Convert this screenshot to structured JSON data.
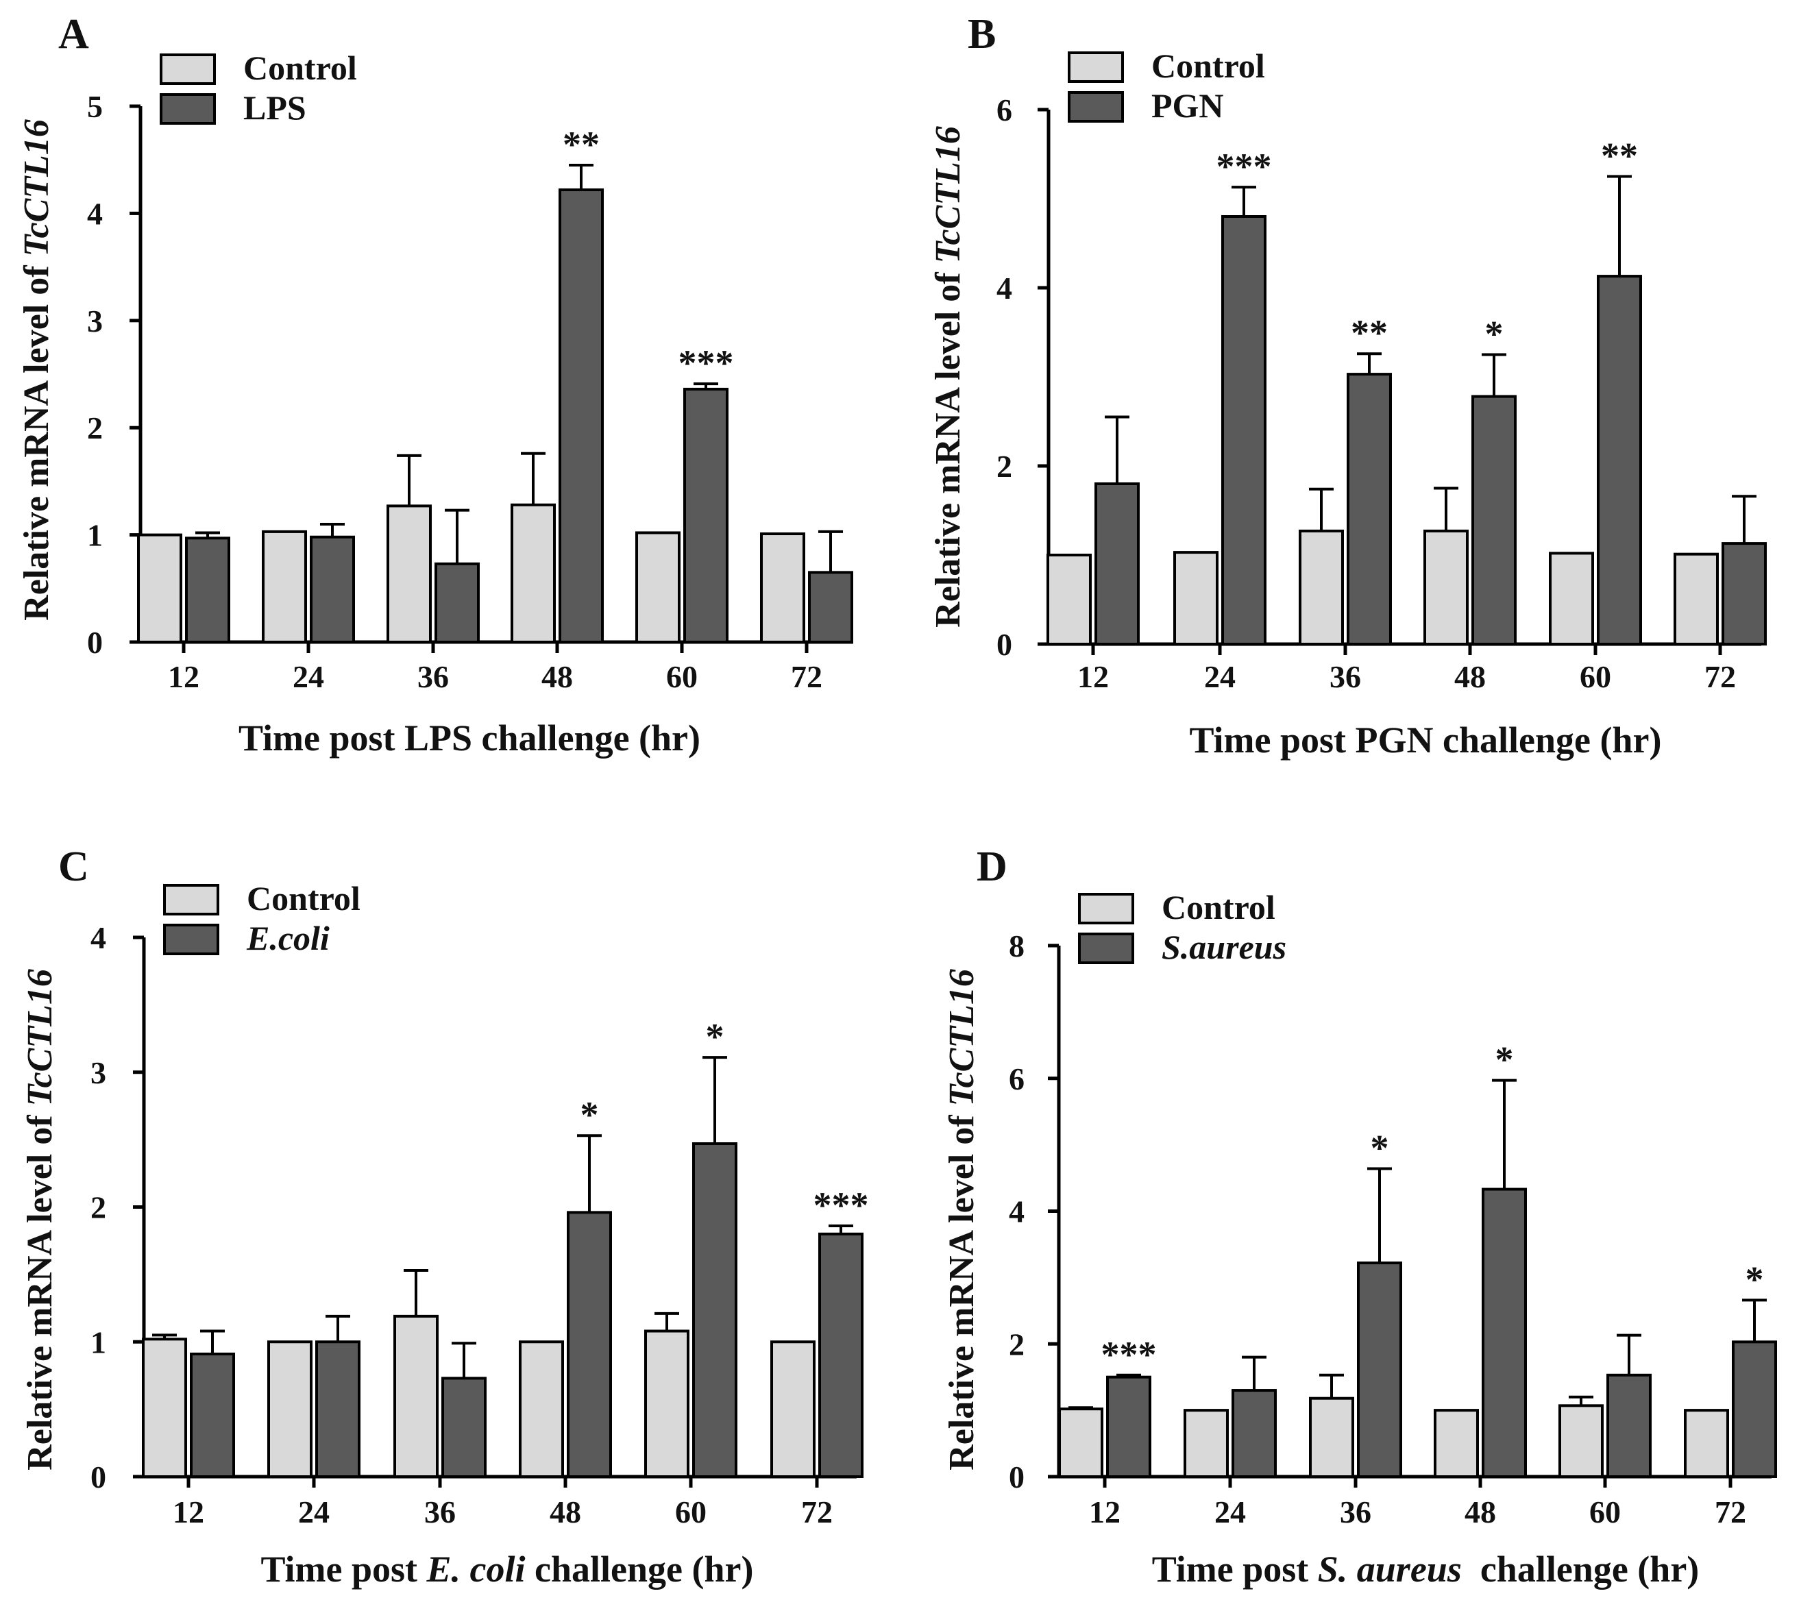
{
  "colors": {
    "control": "#d9d9d9",
    "treated": "#5a5a5a",
    "stroke": "#000000"
  },
  "chart_data": [
    {
      "type": "bar",
      "panel_label": "A",
      "ylabel_prefix": "Relative mRNA level of ",
      "ylabel_gene": "TcCTL16",
      "xlabel": [
        {
          "t": "Time post LPS challenge (hr)",
          "i": false
        }
      ],
      "categories": [
        "12",
        "24",
        "36",
        "48",
        "60",
        "72"
      ],
      "ylim": [
        0,
        5
      ],
      "yticks": [
        "0",
        "1",
        "2",
        "3",
        "4",
        "5"
      ],
      "legend": [
        {
          "label": "Control",
          "italic": false
        },
        {
          "label": "LPS",
          "italic": false
        }
      ],
      "series": [
        {
          "name": "Control",
          "values": [
            1.0,
            1.03,
            1.27,
            1.28,
            1.02,
            1.01
          ],
          "errors": [
            0.0,
            0.0,
            0.47,
            0.48,
            0.0,
            0.0
          ]
        },
        {
          "name": "LPS",
          "values": [
            0.97,
            0.98,
            0.73,
            4.22,
            2.36,
            0.65
          ],
          "errors": [
            0.05,
            0.12,
            0.5,
            0.23,
            0.05,
            0.38
          ]
        }
      ],
      "significance": [
        "",
        "",
        "",
        "**",
        "***",
        ""
      ]
    },
    {
      "type": "bar",
      "panel_label": "B",
      "ylabel_prefix": "Relative mRNA level of ",
      "ylabel_gene": "TcCTL16",
      "xlabel": [
        {
          "t": "Time post PGN challenge (hr)",
          "i": false
        }
      ],
      "categories": [
        "12",
        "24",
        "36",
        "48",
        "60",
        "72"
      ],
      "ylim": [
        0,
        6
      ],
      "yticks": [
        "0",
        "2",
        "4",
        "6"
      ],
      "legend": [
        {
          "label": "Control",
          "italic": false
        },
        {
          "label": "PGN",
          "italic": false
        }
      ],
      "series": [
        {
          "name": "Control",
          "values": [
            1.0,
            1.03,
            1.27,
            1.27,
            1.02,
            1.01
          ],
          "errors": [
            0.0,
            0.0,
            0.47,
            0.48,
            0.0,
            0.0
          ]
        },
        {
          "name": "PGN",
          "values": [
            1.8,
            4.8,
            3.03,
            2.78,
            4.13,
            1.13
          ],
          "errors": [
            0.75,
            0.33,
            0.23,
            0.47,
            1.12,
            0.53
          ]
        }
      ],
      "significance": [
        "",
        "***",
        "**",
        "*",
        "**",
        ""
      ]
    },
    {
      "type": "bar",
      "panel_label": "C",
      "ylabel_prefix": "Relative mRNA level of ",
      "ylabel_gene": "TcCTL16",
      "xlabel": [
        {
          "t": "Time post ",
          "i": false
        },
        {
          "t": "E. coli",
          "i": true
        },
        {
          "t": " challenge (hr)",
          "i": false
        }
      ],
      "categories": [
        "12",
        "24",
        "36",
        "48",
        "60",
        "72"
      ],
      "ylim": [
        0,
        4
      ],
      "yticks": [
        "0",
        "1",
        "2",
        "3",
        "4"
      ],
      "legend": [
        {
          "label": "Control",
          "italic": false
        },
        {
          "label": "E.coli",
          "italic": true
        }
      ],
      "series": [
        {
          "name": "Control",
          "values": [
            1.02,
            1.0,
            1.19,
            1.0,
            1.08,
            1.0
          ],
          "errors": [
            0.03,
            0.0,
            0.34,
            0.0,
            0.13,
            0.0
          ]
        },
        {
          "name": "E.coli",
          "values": [
            0.91,
            1.0,
            0.73,
            1.96,
            2.47,
            1.8
          ],
          "errors": [
            0.17,
            0.19,
            0.26,
            0.57,
            0.64,
            0.06
          ]
        }
      ],
      "significance": [
        "",
        "",
        "",
        "*",
        "*",
        "***"
      ]
    },
    {
      "type": "bar",
      "panel_label": "D",
      "ylabel_prefix": "Relative mRNA level of ",
      "ylabel_gene": "TcCTL16",
      "xlabel": [
        {
          "t": "Time post ",
          "i": false
        },
        {
          "t": "S. aureus",
          "i": true
        },
        {
          "t": "  challenge (hr)",
          "i": false
        }
      ],
      "categories": [
        "12",
        "24",
        "36",
        "48",
        "60",
        "72"
      ],
      "ylim": [
        0,
        8
      ],
      "yticks": [
        "0",
        "2",
        "4",
        "6",
        "8"
      ],
      "legend": [
        {
          "label": "Control",
          "italic": false
        },
        {
          "label": "S.aureus",
          "italic": true
        }
      ],
      "series": [
        {
          "name": "Control",
          "values": [
            1.02,
            1.0,
            1.18,
            1.0,
            1.07,
            1.0
          ],
          "errors": [
            0.02,
            0.0,
            0.35,
            0.0,
            0.13,
            0.0
          ]
        },
        {
          "name": "S.aureus",
          "values": [
            1.5,
            1.3,
            3.22,
            4.33,
            1.53,
            2.03
          ],
          "errors": [
            0.03,
            0.5,
            1.42,
            1.64,
            0.6,
            0.63
          ]
        }
      ],
      "significance": [
        "***",
        "",
        "*",
        "*",
        "",
        "*"
      ]
    }
  ]
}
